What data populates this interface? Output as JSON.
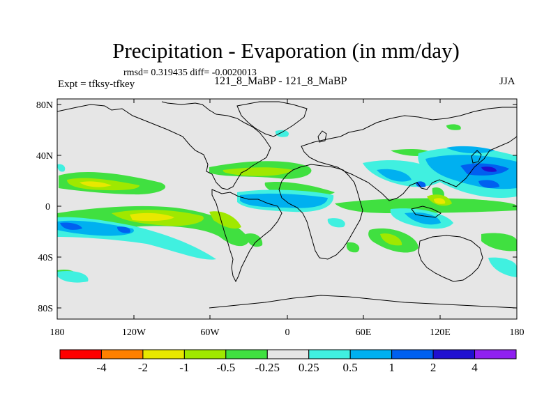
{
  "title": "Precipitation - Evaporation (in mm/day)",
  "stats_text": "rmsd= 0.319435  diff= -0.0020013",
  "experiment_label": "Expt = tfksy-tfkey",
  "run_label": "121_8_MaBP - 121_8_MaBP",
  "season": "JJA",
  "lat_labels": [
    "80N",
    "40N",
    "0",
    "40S",
    "80S"
  ],
  "lon_labels": [
    "180",
    "120W",
    "60W",
    "0",
    "60E",
    "120E",
    "180"
  ],
  "colorbar": {
    "colors": [
      "#ff0000",
      "#ff8000",
      "#e8e800",
      "#a0e800",
      "#40e040",
      "#e6e6e6",
      "#40f0e0",
      "#00b0f0",
      "#0060f0",
      "#2010d0",
      "#9020f0"
    ],
    "labels": [
      "-4",
      "-2",
      "-1",
      "-0.5",
      "-0.25",
      "0.25",
      "0.5",
      "1",
      "2",
      "4"
    ]
  },
  "chart_data": {
    "type": "heatmap",
    "title": "Precipitation - Evaporation (in mm/day)",
    "variable": "P-E difference",
    "units": "mm/day",
    "contour_levels": [
      -4,
      -2,
      -1,
      -0.5,
      -0.25,
      0.25,
      0.5,
      1,
      2,
      4
    ],
    "xlim": [
      -180,
      180
    ],
    "ylim": [
      -90,
      90
    ],
    "x_ticks": [
      -180,
      -120,
      -60,
      0,
      60,
      120,
      180
    ],
    "y_ticks": [
      80,
      40,
      0,
      -40,
      -80
    ],
    "regions": [
      {
        "name": "north-pacific-negative",
        "lon": -150,
        "lat": 15,
        "value": -1
      },
      {
        "name": "south-pacific-negative",
        "lon": -120,
        "lat": -10,
        "value": -1
      },
      {
        "name": "atlantic-itcz-positive",
        "lon": -30,
        "lat": 2,
        "value": 0.5
      },
      {
        "name": "eastern-pacific-positive",
        "lon": -170,
        "lat": -15,
        "value": 1
      },
      {
        "name": "asia-pacific-positive",
        "lon": 140,
        "lat": 25,
        "value": 1
      },
      {
        "name": "indian-ocean-negative",
        "lon": 70,
        "lat": -2,
        "value": -0.5
      }
    ]
  }
}
